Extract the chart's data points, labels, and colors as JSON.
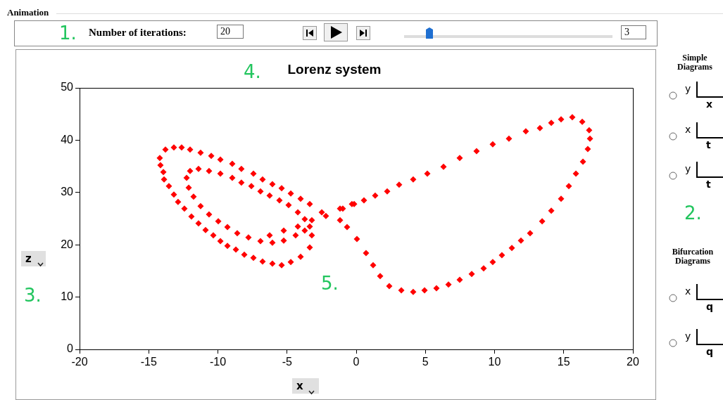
{
  "chart_data": {
    "type": "scatter",
    "title": "Lorenz system",
    "xlabel": "x",
    "ylabel": "z",
    "annotations": [
      "Animation",
      "1.",
      "Number of iterations:",
      "20",
      "3",
      "2.",
      "3.",
      "4.",
      "5.",
      "Simple Diagrams",
      "Bifurcation Diagrams",
      "y",
      "x",
      "x",
      "t",
      "y",
      "t",
      "x",
      "q",
      "y",
      "q"
    ],
    "series": [
      {
        "color": "#ff0000",
        "x": [
          -6.26,
          -5.24,
          -4.22,
          -3.21,
          -2.19,
          -0.97,
          -0.15,
          -1.17,
          -0.31,
          0.56,
          1.37,
          2.24,
          3.1,
          4.12,
          5.14,
          6.31,
          7.48,
          8.7,
          9.87,
          11.04,
          12.26,
          13.28,
          14.1,
          14.81,
          15.62,
          16.34,
          16.84,
          16.9,
          16.74,
          16.39,
          15.88,
          15.37,
          14.81,
          14.1,
          13.44,
          12.57,
          11.91,
          11.25,
          10.53,
          9.87,
          9.21,
          8.35,
          7.48,
          6.67,
          5.8,
          4.94,
          4.12,
          3.26,
          2.39,
          1.73,
          1.22,
          0.71,
          0.05,
          -0.66,
          -1.17,
          -2.49,
          -3.36,
          -4.02,
          -4.73,
          -5.39,
          -6.06,
          -6.77,
          -7.43,
          -8.3,
          -8.96,
          -9.82,
          -10.48,
          -11.25,
          -12.01,
          -12.62,
          -13.18,
          -13.79,
          -14.2,
          -14.15,
          -13.94,
          -13.89,
          -13.54,
          -13.18,
          -12.88,
          -12.42,
          -11.91,
          -11.4,
          -10.89,
          -10.33,
          -9.82,
          -9.31,
          -8.7,
          -8.09,
          -7.43,
          -6.77,
          -6.06,
          -5.39,
          -4.73,
          -4.02,
          -3.36,
          -3.21,
          -3.36,
          -3.72,
          -4.22,
          -4.89,
          -5.55,
          -6.26,
          -6.92,
          -7.58,
          -8.3,
          -8.96,
          -9.82,
          -10.64,
          -11.4,
          -12.01,
          -12.26,
          -12.11,
          -11.76,
          -11.25,
          -10.64,
          -9.97,
          -9.31,
          -8.6,
          -7.79,
          -6.92,
          -6.06,
          -5.24,
          -4.38,
          -3.72
        ],
        "values": [
          21.8,
          22.7,
          23.5,
          24.7,
          25.5,
          26.9,
          27.8,
          26.9,
          27.8,
          28.5,
          29.4,
          30.2,
          31.5,
          32.5,
          33.6,
          34.9,
          36.6,
          37.9,
          39.2,
          40.3,
          41.7,
          42.3,
          43.3,
          44.0,
          44.4,
          43.5,
          41.9,
          40.3,
          38.3,
          35.9,
          33.6,
          31.2,
          28.8,
          26.5,
          24.5,
          22.2,
          20.8,
          19.4,
          18.0,
          16.7,
          15.5,
          14.4,
          13.3,
          12.4,
          11.7,
          11.3,
          11.0,
          11.3,
          12.1,
          14.0,
          16.1,
          18.4,
          21.1,
          23.4,
          24.7,
          26.2,
          27.8,
          28.8,
          29.8,
          30.8,
          31.6,
          32.5,
          33.6,
          34.5,
          35.5,
          36.3,
          37.0,
          37.6,
          38.2,
          38.6,
          38.6,
          38.2,
          36.6,
          35.2,
          33.9,
          32.5,
          31.2,
          29.6,
          28.2,
          26.9,
          25.4,
          24.1,
          22.8,
          21.8,
          20.7,
          19.8,
          19.1,
          18.1,
          17.5,
          16.8,
          16.4,
          16.1,
          16.7,
          17.7,
          19.5,
          21.8,
          23.5,
          24.9,
          26.2,
          27.6,
          28.5,
          29.4,
          30.2,
          31.2,
          31.9,
          32.8,
          33.6,
          34.1,
          34.5,
          34.1,
          32.8,
          30.9,
          29.2,
          27.4,
          25.8,
          24.5,
          23.4,
          22.2,
          21.4,
          20.7,
          20.4,
          20.8,
          21.8,
          22.7
        ]
      }
    ],
    "xlim": [
      -20,
      20
    ],
    "xticks": [
      -20,
      -15,
      -10,
      -5,
      0,
      5,
      10,
      15,
      20
    ],
    "ylim": [
      0,
      50
    ],
    "yticks": [
      0,
      10,
      20,
      30,
      40,
      50
    ],
    "marker": "diamond",
    "grid": false,
    "legend": false
  }
}
